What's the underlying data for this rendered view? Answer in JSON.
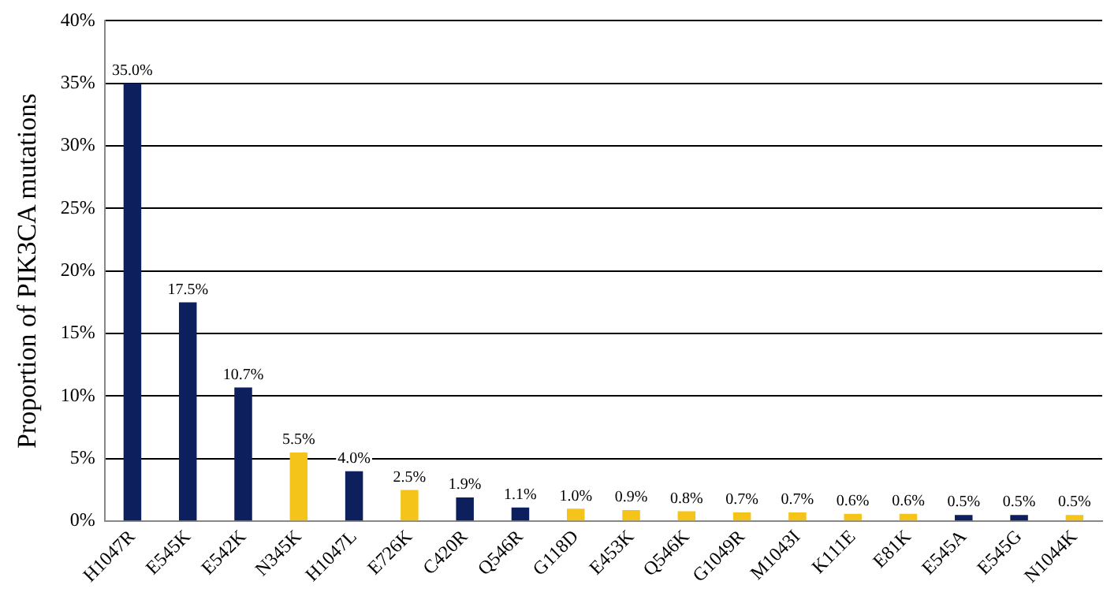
{
  "chart_data": {
    "type": "bar",
    "ylabel": "Proportion of PIK3CA mutations",
    "categories": [
      "H1047R",
      "E545K",
      "E542K",
      "N345K",
      "H1047L",
      "E726K",
      "C420R",
      "Q546R",
      "G118D",
      "E453K",
      "Q546K",
      "G1049R",
      "M1043I",
      "K111E",
      "E81K",
      "E545A",
      "E545G",
      "N1044K"
    ],
    "values": [
      35.0,
      17.5,
      10.7,
      5.5,
      4.0,
      2.5,
      1.9,
      1.1,
      1.0,
      0.9,
      0.8,
      0.7,
      0.7,
      0.6,
      0.6,
      0.5,
      0.5,
      0.5
    ],
    "colors": [
      "#0d1f5c",
      "#0d1f5c",
      "#0d1f5c",
      "#f5c41a",
      "#0d1f5c",
      "#f5c41a",
      "#0d1f5c",
      "#0d1f5c",
      "#f5c41a",
      "#f5c41a",
      "#f5c41a",
      "#f5c41a",
      "#f5c41a",
      "#f5c41a",
      "#f5c41a",
      "#0d1f5c",
      "#0d1f5c",
      "#f5c41a"
    ],
    "value_labels": [
      "35.0%",
      "17.5%",
      "10.7%",
      "5.5%",
      "4.0%",
      "2.5%",
      "1.9%",
      "1.1%",
      "1.0%",
      "0.9%",
      "0.8%",
      "0.7%",
      "0.7%",
      "0.6%",
      "0.6%",
      "0.5%",
      "0.5%",
      "0.5%"
    ],
    "ylim": [
      0,
      40
    ],
    "yticks": [
      {
        "value": 0,
        "label": "0%"
      },
      {
        "value": 5,
        "label": "5%"
      },
      {
        "value": 10,
        "label": "10%"
      },
      {
        "value": 15,
        "label": "15%"
      },
      {
        "value": 20,
        "label": "20%"
      },
      {
        "value": 25,
        "label": "25%"
      },
      {
        "value": 30,
        "label": "30%"
      },
      {
        "value": 35,
        "label": "35%"
      },
      {
        "value": 40,
        "label": "40%"
      }
    ],
    "grid": "y",
    "legend": false
  }
}
